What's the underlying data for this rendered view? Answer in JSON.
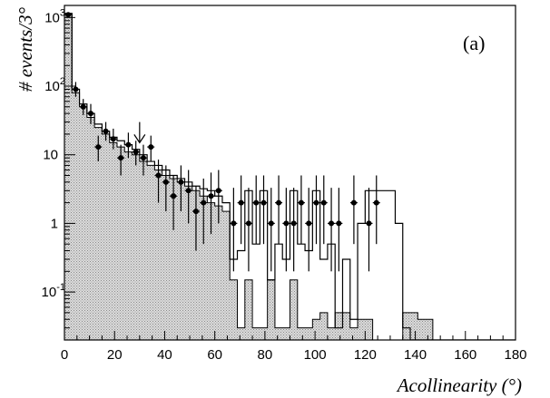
{
  "chart_data": {
    "type": "histogram",
    "xlabel": "Acollinearity (°)",
    "ylabel": "# events/3°",
    "panel_label": "(a)",
    "log_y": true,
    "xlim": [
      0,
      180
    ],
    "ylim": [
      0.02,
      1500
    ],
    "grid": false,
    "legend": "none",
    "bin_width": 3,
    "x_ticks": [
      0,
      20,
      40,
      60,
      80,
      100,
      120,
      140,
      160,
      180
    ],
    "x_tick_labels": [
      "0",
      "20",
      "40",
      "60",
      "80",
      "100",
      "120",
      "140",
      "160",
      "180"
    ],
    "x_minor_step": 5,
    "y_ticks": [
      {
        "value": 1000,
        "base": "10",
        "exp": "3"
      },
      {
        "value": 100,
        "base": "10",
        "exp": "2"
      },
      {
        "value": 10,
        "base": "10",
        "exp": ""
      },
      {
        "value": 1,
        "base": "1",
        "exp": ""
      },
      {
        "value": 0.1,
        "base": "10",
        "exp": "-1"
      }
    ],
    "arrow": {
      "x": 30,
      "y_top": 30,
      "y_bottom": 15
    },
    "colors": {
      "fill": "#c4c4c4",
      "line": "#000000"
    },
    "series": [
      {
        "kind": "shaded_mc",
        "values": [
          1100,
          80,
          50,
          35,
          25,
          20,
          15,
          13,
          11,
          10,
          8,
          7,
          6,
          5,
          4.5,
          4,
          3.5,
          3,
          2.5,
          2,
          1.8,
          1.5,
          0.15,
          0.03,
          0.15,
          0.03,
          0.03,
          0.15,
          0.03,
          0.03,
          0.15,
          0.03,
          0.03,
          0.04,
          0.05,
          0.03,
          0.05,
          0.05,
          0.03,
          0.04,
          0.04,
          0.02,
          0.02,
          0.02,
          0.02,
          0.05,
          0.05,
          0.04,
          0.04,
          0.02,
          0.02,
          0.02,
          0.02,
          0.02,
          0.02,
          0.02,
          0.02,
          0.02,
          0.02,
          0.02
        ]
      },
      {
        "kind": "outline_mc",
        "values": [
          1150,
          90,
          55,
          40,
          28,
          22,
          18,
          16,
          14,
          12,
          10,
          8,
          7,
          6,
          5,
          4.5,
          4,
          3.5,
          3.2,
          3,
          2.5,
          2,
          0.3,
          0.4,
          3,
          0.5,
          3,
          0.15,
          0.5,
          0.3,
          3,
          0.5,
          0.4,
          3,
          0.3,
          0.5,
          0.03,
          0.3,
          0.04,
          1.0,
          3,
          3,
          3,
          3,
          1.0,
          0.03,
          0.02,
          0.02,
          0.02,
          0.02,
          0.02,
          0.02,
          0.02,
          0.02,
          0.02,
          0.02,
          0.02,
          0.02,
          0.02,
          0.02
        ]
      },
      {
        "kind": "data_points",
        "x": [
          1.5,
          4.5,
          7.5,
          10.5,
          13.5,
          16.5,
          19.5,
          22.5,
          25.5,
          28.5,
          31.5,
          34.5,
          37.5,
          40.5,
          43.5,
          46.5,
          49.5,
          52.5,
          55.5,
          58.5,
          61.5,
          67.5,
          70.5,
          73.5,
          76.5,
          79.5,
          82.5,
          85.5,
          88.5,
          91.5,
          94.5,
          97.5,
          100.5,
          103.5,
          106.5,
          109.5,
          115.5,
          121.5,
          124.5
        ],
        "y": [
          1100,
          90,
          50,
          40,
          13,
          22,
          17,
          9,
          14,
          11,
          9,
          13,
          5,
          4,
          2.5,
          4,
          3,
          1.5,
          2,
          2.5,
          3,
          1,
          2,
          1,
          2,
          2,
          1,
          2,
          1,
          1,
          2,
          1,
          2,
          2,
          1,
          1,
          2,
          1,
          2
        ],
        "yerr_low": [
          60,
          20,
          12,
          12,
          5,
          6,
          5,
          4,
          5,
          4,
          4,
          5,
          3,
          2.5,
          1.7,
          2.5,
          2,
          1.1,
          1.5,
          1.8,
          2,
          0.8,
          1.5,
          0.8,
          1.5,
          1.5,
          0.8,
          1.5,
          0.8,
          0.8,
          1.5,
          0.8,
          1.5,
          1.5,
          0.8,
          0.8,
          1.5,
          0.8,
          1.5
        ],
        "yerr_high": [
          60,
          25,
          15,
          15,
          6,
          8,
          7,
          5,
          7,
          5,
          5,
          6,
          3.5,
          3,
          2.5,
          3,
          3,
          2,
          2.5,
          3,
          3,
          2.3,
          3,
          2.3,
          3,
          3,
          2.3,
          3,
          2.3,
          2.3,
          3,
          2.3,
          3,
          3,
          2.3,
          2.3,
          3,
          2.3,
          3
        ]
      }
    ]
  }
}
